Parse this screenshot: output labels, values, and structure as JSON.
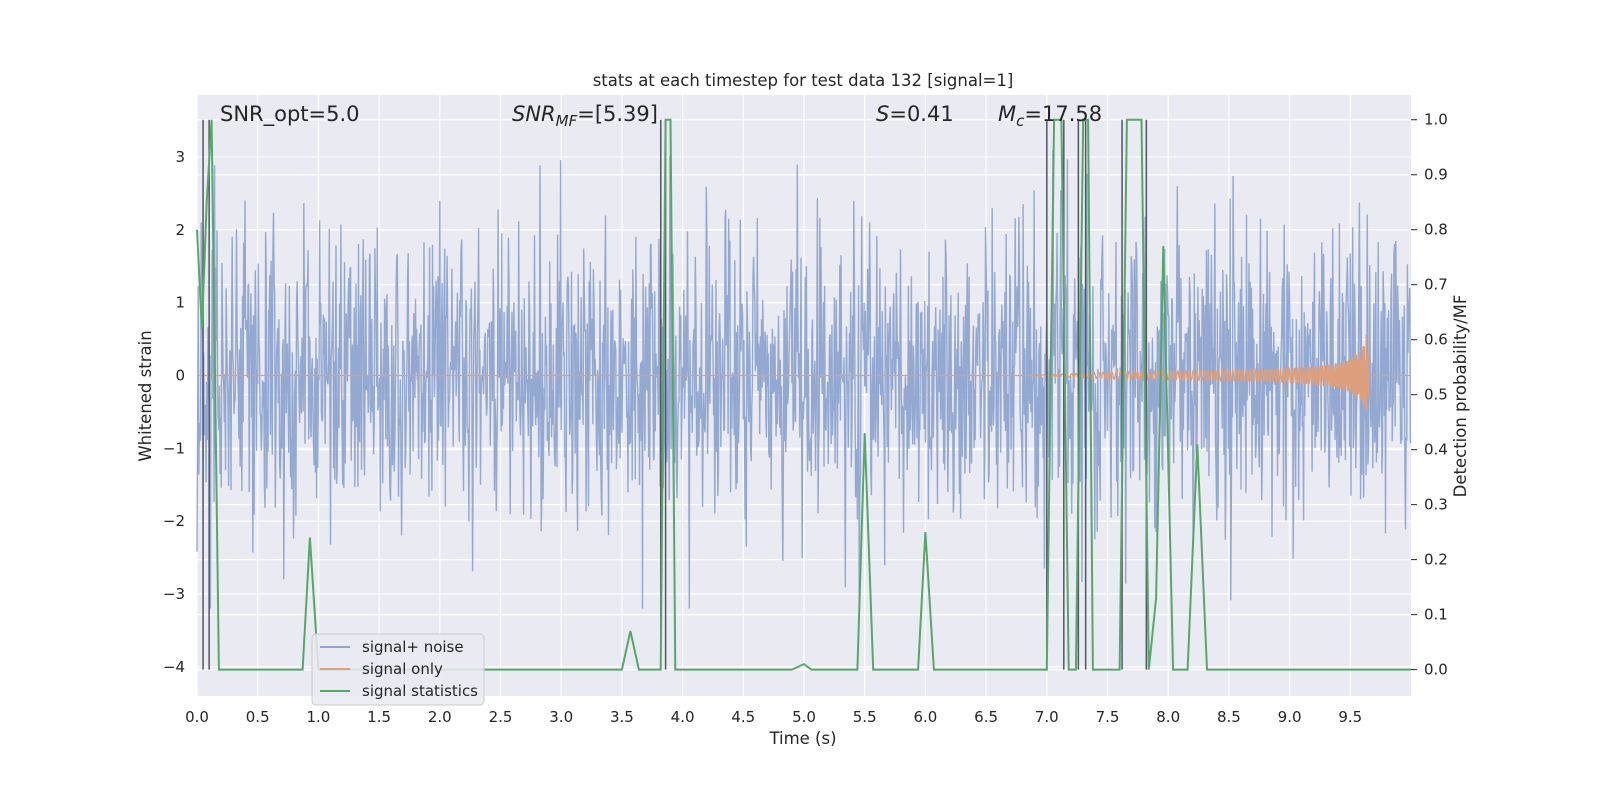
{
  "chart_data": {
    "type": "line",
    "title": "stats at each timestep for test data 132 [signal=1]",
    "xlabel": "Time (s)",
    "ylabel_left": "Whitened strain",
    "ylabel_right": "Detection probability/MF",
    "xlim": [
      0.0,
      10.0
    ],
    "ylim_left": [
      -4.4,
      3.85
    ],
    "ylim_right": [
      -0.048,
      1.045
    ],
    "grid": true,
    "legend_position": "lower-left",
    "x_ticks": [
      "0.0",
      "0.5",
      "1.0",
      "1.5",
      "2.0",
      "2.5",
      "3.0",
      "3.5",
      "4.0",
      "4.5",
      "5.0",
      "5.5",
      "6.0",
      "6.5",
      "7.0",
      "7.5",
      "8.0",
      "8.5",
      "9.0",
      "9.5"
    ],
    "y_ticks_left": [
      "3",
      "2",
      "1",
      "0",
      "−1",
      "−2",
      "−3",
      "−4"
    ],
    "y_ticks_right": [
      "1.0",
      "0.9",
      "0.8",
      "0.7",
      "0.6",
      "0.5",
      "0.4",
      "0.3",
      "0.2",
      "0.1",
      "0.0"
    ],
    "annotations": {
      "snr_opt": "SNR_opt=5.0",
      "snr_mf_sym": "SNR",
      "snr_mf_sub": "MF",
      "snr_mf_val": "=[5.39]",
      "s_sym": "S",
      "s_val": "=0.41",
      "mc_sym": "M",
      "mc_sub": "c",
      "mc_val": "=17.58"
    },
    "series": [
      {
        "name": "signal+ noise",
        "color": "#8fa5d0",
        "description_range": [
          -3.2,
          3.5
        ]
      },
      {
        "name": "signal only",
        "color": "#dd9f7c",
        "chirp": {
          "start": 6.8,
          "end": 9.65,
          "peak_amplitude": 0.85
        }
      },
      {
        "name": "signal statistics",
        "color": "#55a868",
        "points": [
          [
            0.0,
            0.8
          ],
          [
            0.04,
            0.62
          ],
          [
            0.08,
            0.85
          ],
          [
            0.12,
            1.0
          ],
          [
            0.18,
            0.0
          ],
          [
            0.87,
            0.0
          ],
          [
            0.93,
            0.24
          ],
          [
            1.0,
            0.0
          ],
          [
            3.5,
            0.0
          ],
          [
            3.57,
            0.07
          ],
          [
            3.64,
            0.0
          ],
          [
            3.82,
            0.0
          ],
          [
            3.86,
            1.0
          ],
          [
            3.9,
            1.0
          ],
          [
            3.94,
            0.0
          ],
          [
            4.9,
            0.0
          ],
          [
            5.0,
            0.01
          ],
          [
            5.06,
            0.0
          ],
          [
            5.44,
            0.0
          ],
          [
            5.5,
            0.43
          ],
          [
            5.57,
            0.0
          ],
          [
            5.94,
            0.0
          ],
          [
            6.0,
            0.25
          ],
          [
            6.07,
            0.0
          ],
          [
            7.0,
            0.0
          ],
          [
            7.06,
            1.0
          ],
          [
            7.12,
            1.0
          ],
          [
            7.18,
            0.0
          ],
          [
            7.24,
            0.0
          ],
          [
            7.3,
            1.0
          ],
          [
            7.34,
            1.0
          ],
          [
            7.38,
            0.0
          ],
          [
            7.6,
            0.0
          ],
          [
            7.66,
            1.0
          ],
          [
            7.78,
            1.0
          ],
          [
            7.84,
            0.0
          ],
          [
            7.9,
            0.13
          ],
          [
            7.96,
            0.77
          ],
          [
            8.04,
            0.0
          ],
          [
            8.16,
            0.0
          ],
          [
            8.24,
            0.41
          ],
          [
            8.32,
            0.0
          ],
          [
            10.0,
            0.0
          ]
        ]
      }
    ],
    "vertical_markers": [
      0.05,
      0.1,
      3.82,
      3.86,
      7.0,
      7.14,
      7.26,
      7.32,
      7.62,
      7.82
    ]
  }
}
